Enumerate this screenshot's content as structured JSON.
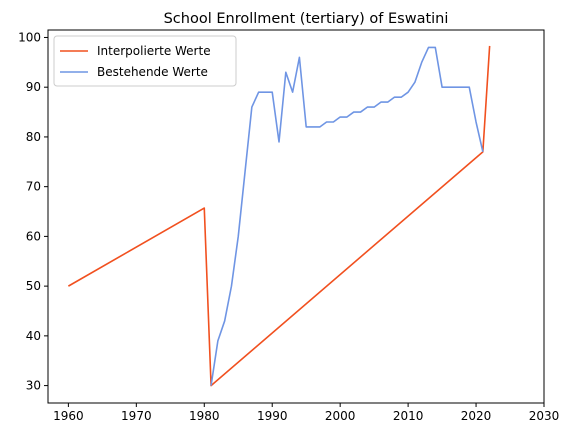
{
  "chart_data": {
    "type": "line",
    "title": "School Enrollment (tertiary) of Eswatini",
    "xlabel": "",
    "ylabel": "",
    "xlim": [
      1957,
      2030
    ],
    "ylim": [
      26.5,
      101.5
    ],
    "xticks": [
      1960,
      1970,
      1980,
      1990,
      2000,
      2010,
      2020,
      2030
    ],
    "yticks": [
      30,
      40,
      50,
      60,
      70,
      80,
      90,
      100
    ],
    "grid": false,
    "legend_position": "top-left",
    "series": [
      {
        "name": "Interpolierte Werte",
        "color": "#f1501f",
        "points": [
          [
            1960,
            50
          ],
          [
            1980,
            65.7
          ],
          [
            1981,
            30
          ],
          [
            2021,
            77
          ],
          [
            2022,
            98.3
          ]
        ]
      },
      {
        "name": "Bestehende Werte",
        "color": "#6f95e4",
        "points": [
          [
            1981,
            30
          ],
          [
            1982,
            39
          ],
          [
            1983,
            43
          ],
          [
            1984,
            50
          ],
          [
            1985,
            60
          ],
          [
            1986,
            73
          ],
          [
            1987,
            86
          ],
          [
            1988,
            89
          ],
          [
            1989,
            89
          ],
          [
            1990,
            89
          ],
          [
            1991,
            79
          ],
          [
            1992,
            93
          ],
          [
            1993,
            89
          ],
          [
            1994,
            96
          ],
          [
            1995,
            82
          ],
          [
            1996,
            82
          ],
          [
            1997,
            82
          ],
          [
            1998,
            83
          ],
          [
            1999,
            83
          ],
          [
            2000,
            84
          ],
          [
            2001,
            84
          ],
          [
            2002,
            85
          ],
          [
            2003,
            85
          ],
          [
            2004,
            86
          ],
          [
            2005,
            86
          ],
          [
            2006,
            87
          ],
          [
            2007,
            87
          ],
          [
            2008,
            88
          ],
          [
            2009,
            88
          ],
          [
            2010,
            89
          ],
          [
            2011,
            91
          ],
          [
            2012,
            95
          ],
          [
            2013,
            98
          ],
          [
            2014,
            98
          ],
          [
            2015,
            90
          ],
          [
            2016,
            90
          ],
          [
            2017,
            90
          ],
          [
            2018,
            90
          ],
          [
            2019,
            90
          ],
          [
            2020,
            83
          ],
          [
            2021,
            77
          ]
        ]
      }
    ]
  }
}
